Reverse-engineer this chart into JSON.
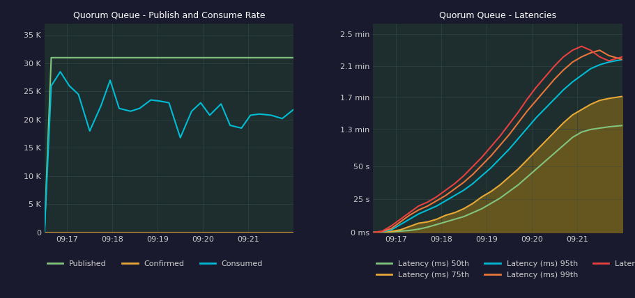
{
  "bg_color": "#1a1a2e",
  "plot_bg_color": "#1e2e2e",
  "grid_color": "#2e4444",
  "text_color": "#cccccc",
  "title_color": "#ffffff",
  "left_title": "Quorum Queue - Publish and Consume Rate",
  "left_xticks": [
    "09:17",
    "09:18",
    "09:19",
    "09:20",
    "09:21"
  ],
  "left_yticks": [
    "0",
    "5 K",
    "10 K",
    "15 K",
    "20 K",
    "25 K",
    "30 K",
    "35 K"
  ],
  "left_ytick_vals": [
    0,
    5000,
    10000,
    15000,
    20000,
    25000,
    30000,
    35000
  ],
  "left_ylim": [
    0,
    37000
  ],
  "published_x": [
    0.0,
    0.15,
    0.5,
    1.0,
    1.5,
    2.0,
    2.5,
    3.0,
    3.5,
    4.0,
    4.5,
    5.0,
    5.5
  ],
  "published_y": [
    0,
    31000,
    31000,
    31000,
    31000,
    31000,
    31000,
    31000,
    31000,
    31000,
    31000,
    31000,
    31000
  ],
  "published_color": "#82c47e",
  "confirmed_x": [
    0.0,
    0.5,
    1.0,
    1.5,
    2.0,
    2.5,
    3.0,
    3.5,
    4.0,
    4.5,
    5.0,
    5.5
  ],
  "confirmed_y": [
    0,
    0,
    0,
    0,
    0,
    0,
    0,
    0,
    0,
    0,
    0,
    0
  ],
  "confirmed_color": "#e8a838",
  "consumed_x": [
    0,
    0.15,
    0.35,
    0.55,
    0.75,
    1.0,
    1.25,
    1.45,
    1.65,
    1.9,
    2.1,
    2.35,
    2.55,
    2.75,
    3.0,
    3.25,
    3.45,
    3.65,
    3.9,
    4.1,
    4.35,
    4.55,
    4.75,
    5.0,
    5.25,
    5.5
  ],
  "consumed_y": [
    0,
    26000,
    28500,
    26000,
    24500,
    18000,
    22500,
    27000,
    22000,
    21500,
    22000,
    23500,
    23300,
    23000,
    16800,
    21500,
    23000,
    20800,
    22800,
    19000,
    18500,
    20800,
    21000,
    20800,
    20200,
    21800
  ],
  "consumed_color": "#00bcd4",
  "right_title": "Quorum Queue - Latencies",
  "right_xticks": [
    "09:17",
    "09:18",
    "09:19",
    "09:20",
    "09:21"
  ],
  "right_yticks": [
    "0 ms",
    "25 s",
    "50 s",
    "1.3 min",
    "1.7 min",
    "2.1 min",
    "2.5 min"
  ],
  "right_yvals": [
    0,
    25000,
    50000,
    78000,
    102000,
    126000,
    150000
  ],
  "right_ylim": [
    0,
    158000
  ],
  "lat_x": [
    0,
    0.2,
    0.4,
    0.6,
    0.8,
    1.0,
    1.2,
    1.4,
    1.6,
    1.8,
    2.0,
    2.2,
    2.4,
    2.6,
    2.8,
    3.0,
    3.2,
    3.4,
    3.6,
    3.8,
    4.0,
    4.2,
    4.4,
    4.6,
    4.8,
    5.0,
    5.2,
    5.5
  ],
  "lat50_y": [
    0,
    200,
    500,
    1000,
    1500,
    2500,
    4000,
    6000,
    8000,
    10000,
    12000,
    15000,
    18000,
    22000,
    26000,
    31000,
    36000,
    42000,
    48000,
    54000,
    60000,
    66000,
    72000,
    76000,
    78000,
    79000,
    80000,
    81000
  ],
  "lat50_color": "#82c47e",
  "lat75_y": [
    0,
    300,
    800,
    2000,
    4500,
    7000,
    8000,
    10000,
    13000,
    15000,
    18000,
    22000,
    27000,
    31000,
    36000,
    42000,
    48000,
    55000,
    62000,
    69000,
    76000,
    83000,
    89000,
    93000,
    97000,
    100000,
    101500,
    103000
  ],
  "lat75_color": "#e8a838",
  "lat95_y": [
    0,
    500,
    2000,
    6000,
    10000,
    14000,
    17000,
    20000,
    24000,
    28000,
    32000,
    37000,
    43000,
    49000,
    56000,
    63000,
    71000,
    79000,
    87000,
    94000,
    101000,
    108000,
    114000,
    119000,
    124000,
    127000,
    129000,
    131000
  ],
  "lat95_color": "#00bcd4",
  "lat99_y": [
    0,
    700,
    3000,
    8000,
    13000,
    17000,
    20000,
    24000,
    28000,
    33000,
    38000,
    44000,
    51000,
    58000,
    66000,
    74000,
    83000,
    92000,
    100000,
    108000,
    116000,
    123000,
    129000,
    133000,
    136000,
    138000,
    134000,
    131000
  ],
  "lat99_color": "#e8763a",
  "lat999_y": [
    0,
    1000,
    5000,
    10000,
    15000,
    20000,
    23000,
    27000,
    32000,
    37000,
    43000,
    50000,
    57000,
    65000,
    73000,
    82000,
    91000,
    101000,
    110000,
    118000,
    126000,
    133000,
    138000,
    141000,
    138000,
    133000,
    130000,
    133000
  ],
  "lat999_color": "#e84040",
  "fill_color": "#6b5a20"
}
